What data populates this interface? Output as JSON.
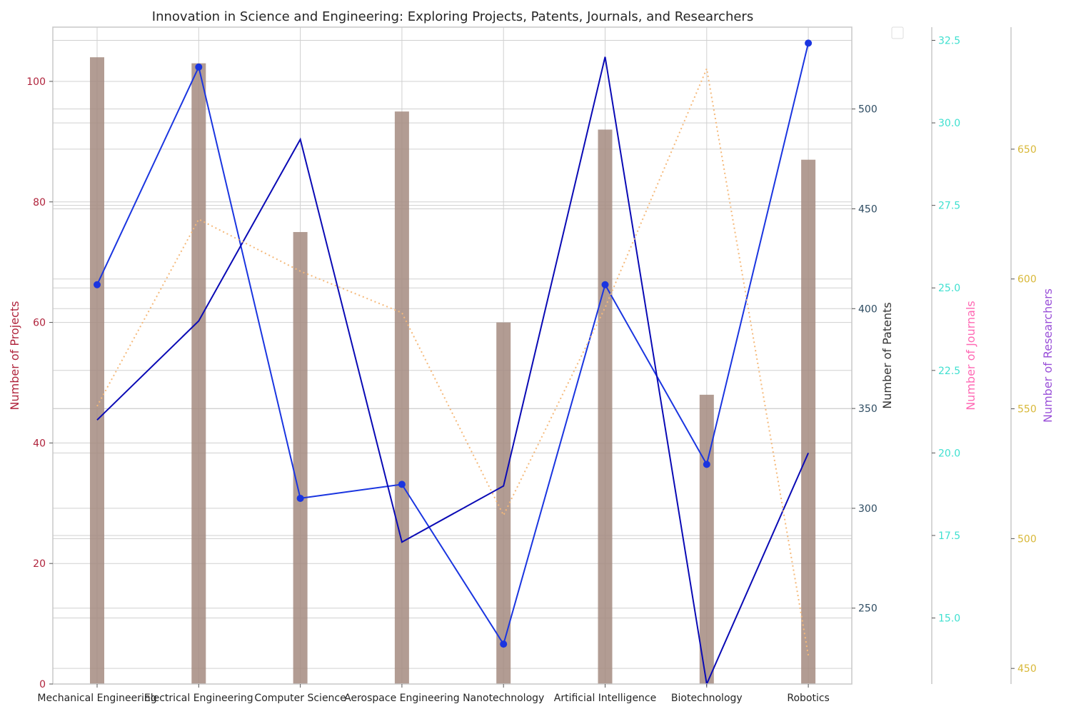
{
  "chart_data": {
    "type": "bar",
    "title": "Innovation in Science and Engineering: Exploring Projects, Patents, Journals, and Researchers",
    "categories": [
      "Mechanical Engineering",
      "Electrical Engineering",
      "Computer Science",
      "Aerospace Engineering",
      "Nanotechnology",
      "Artificial Intelligence",
      "Biotechnology",
      "Robotics"
    ],
    "series": [
      {
        "name": "",
        "kind": "bar",
        "axis": "projects",
        "color": "#a58b80",
        "values": [
          104,
          103,
          75,
          95,
          60,
          92,
          48,
          87
        ]
      },
      {
        "name": "",
        "kind": "line-markers",
        "axis": "patents",
        "color": "#1a35e0",
        "values": [
          412,
          521,
          305,
          312,
          232,
          412,
          322,
          533
        ]
      },
      {
        "name": "",
        "kind": "line",
        "axis": "journals",
        "color": "#0a0ab5",
        "values": [
          21.0,
          24.0,
          29.5,
          17.3,
          19.0,
          32.0,
          13.0,
          20.0
        ]
      },
      {
        "name": "",
        "kind": "line-dotted",
        "axis": "researchers",
        "color": "#f5b97a",
        "values": [
          551,
          623,
          603,
          587,
          509,
          589,
          681,
          455
        ]
      }
    ],
    "axes": {
      "projects": {
        "label": "Number of Projects",
        "label_color": "#b0243c",
        "tick_color": "#b0243c",
        "ylim": [
          0,
          109
        ],
        "ticks": [
          0,
          20,
          40,
          60,
          80,
          100
        ],
        "tick_labels": [
          "0",
          "20",
          "40",
          "60",
          "80",
          "100"
        ]
      },
      "patents": {
        "label": "Number of Patents",
        "label_color": "#333333",
        "tick_color": "#2e4c62",
        "ylim": [
          212,
          541
        ],
        "ticks": [
          250,
          300,
          350,
          400,
          450,
          500
        ],
        "tick_labels": [
          "250",
          "300",
          "350",
          "400",
          "450",
          "500"
        ]
      },
      "journals": {
        "label": "Number of Journals",
        "label_color": "#ff69b4",
        "tick_color": "#40e0d0",
        "ylim": [
          13.0,
          32.9
        ],
        "ticks": [
          15.0,
          17.5,
          20.0,
          22.5,
          25.0,
          27.5,
          30.0,
          32.5
        ],
        "tick_labels": [
          "15.0",
          "17.5",
          "20.0",
          "22.5",
          "25.0",
          "27.5",
          "30.0",
          "32.5"
        ]
      },
      "researchers": {
        "label": "Number of Researchers",
        "label_color": "#9a50d8",
        "tick_color": "#d8b838",
        "ylim": [
          444,
          697
        ],
        "ticks": [
          450,
          500,
          550,
          600,
          650
        ],
        "tick_labels": [
          "450",
          "500",
          "550",
          "600",
          "650"
        ]
      }
    },
    "grid": true,
    "legend": "top-right (empty)"
  }
}
